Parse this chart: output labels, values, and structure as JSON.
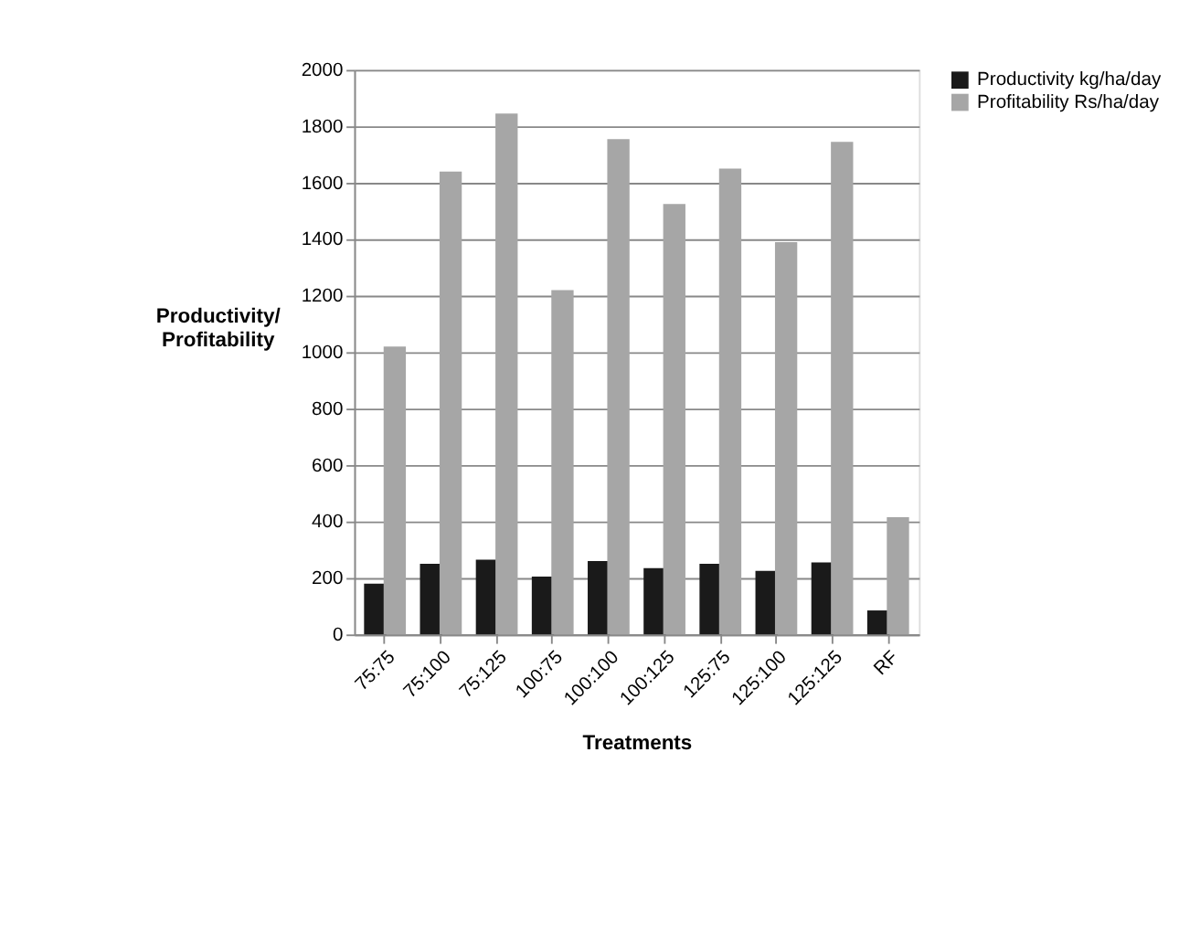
{
  "chart_data": {
    "type": "bar",
    "xlabel": "Treatments",
    "ylabel": "Productivity/ Profitability",
    "categories": [
      "75:75",
      "75:100",
      "75:125",
      "100:75",
      "100:100",
      "100:125",
      "125:75",
      "125:100",
      "125:125",
      "RF"
    ],
    "series": [
      {
        "name": "Productivity kg/ha/day",
        "color": "#1a1a1a",
        "values": [
          180,
          250,
          265,
          205,
          260,
          235,
          250,
          225,
          255,
          85
        ]
      },
      {
        "name": "Profitability Rs/ha/day",
        "color": "#a6a6a6",
        "values": [
          1020,
          1640,
          1845,
          1220,
          1755,
          1525,
          1650,
          1390,
          1745,
          415
        ]
      }
    ],
    "ylim": [
      0,
      2000
    ],
    "yticks": [
      0,
      200,
      400,
      600,
      800,
      1000,
      1200,
      1400,
      1600,
      1800,
      2000
    ],
    "grid": "y",
    "legend": "right"
  }
}
